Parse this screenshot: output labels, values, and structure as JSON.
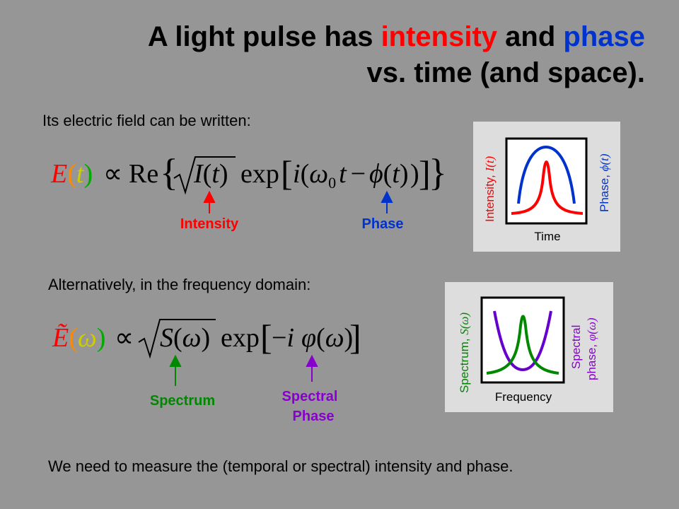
{
  "title": {
    "line1": [
      "A light pulse has ",
      "intensity",
      " and ",
      "phase"
    ],
    "line2": "vs. time (and space)."
  },
  "time_domain": {
    "intro": "Its electric field can be written:",
    "equation": [
      "E",
      "(",
      "t",
      ")",
      "∝",
      "Re",
      "{",
      "I",
      "(",
      "t",
      ")",
      "exp",
      "[",
      "i",
      "(",
      "ω",
      "0",
      "t",
      "−",
      "ϕ",
      "(",
      "t",
      ")",
      ")",
      "]",
      "}"
    ],
    "labels": [
      "Intensity",
      "Phase"
    ]
  },
  "time_plot": {
    "y_left": "Intensity, ",
    "y_left_sym": "I(t)",
    "y_right": "Phase, ",
    "y_right_sym": "ϕ(t)",
    "x": "Time"
  },
  "frequency_domain": {
    "intro": "Alternatively, in the frequency domain:",
    "equation": [
      "Ẽ",
      "(",
      "ω",
      ")",
      "∝",
      "S",
      "(",
      "ω",
      ")",
      "exp",
      "[",
      "−",
      "i",
      "φ",
      "(",
      "ω",
      ")",
      "]"
    ],
    "labels": [
      "Spectrum",
      "Spectral",
      "Phase"
    ]
  },
  "frequency_plot": {
    "y_left": "Spectrum, ",
    "y_left_sym": "S(ω)",
    "y_right_1": "Spectral",
    "y_right_2": "phase, ",
    "y_right_sym": "φ(ω)",
    "x": "Frequency"
  },
  "conclusion": "We need to measure the (temporal or spectral) intensity and phase."
}
